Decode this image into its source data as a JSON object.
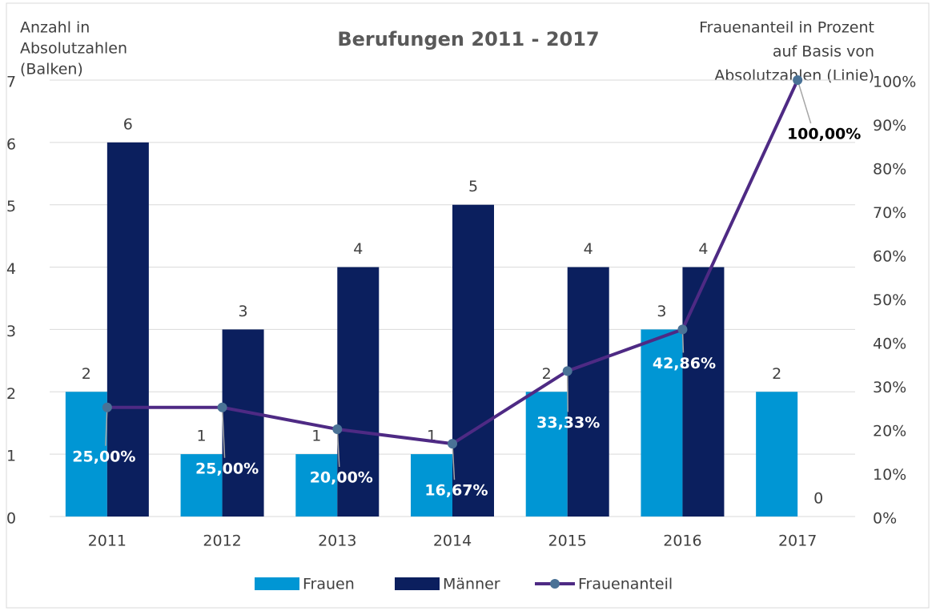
{
  "chart_data": {
    "type": "bar",
    "title": "Berufungen 2011 - 2017",
    "y_axis_title": [
      "Anzahl in",
      "Absolutzahlen",
      "(Balken)"
    ],
    "y2_axis_title": [
      "Frauenanteil in Prozent",
      "auf Basis von",
      "Absolutzahlen (Linie)"
    ],
    "categories": [
      "2011",
      "2012",
      "2013",
      "2014",
      "2015",
      "2016",
      "2017"
    ],
    "series": [
      {
        "name": "Frauen",
        "color": "#0096d4",
        "type": "bar",
        "values": [
          2,
          1,
          1,
          1,
          2,
          3,
          2
        ]
      },
      {
        "name": "Männer",
        "color": "#0b1f5e",
        "type": "bar",
        "values": [
          6,
          3,
          4,
          5,
          4,
          4,
          0
        ]
      },
      {
        "name": "Frauenanteil",
        "color": "#4e2a84",
        "marker_color": "#4a7296",
        "type": "line",
        "axis": "y2",
        "values": [
          25,
          25,
          20,
          16.67,
          33.33,
          42.86,
          100
        ],
        "value_labels": [
          "25,00%",
          "25,00%",
          "20,00%",
          "16,67%",
          "33,33%",
          "42,86%",
          "100,00%"
        ]
      }
    ],
    "ylim": [
      0,
      7
    ],
    "yticks": [
      0,
      1,
      2,
      3,
      4,
      5,
      6,
      7
    ],
    "y2lim": [
      0,
      100
    ],
    "y2ticks": [
      {
        "value": 0,
        "label": "0%"
      },
      {
        "value": 10,
        "label": "10%"
      },
      {
        "value": 20,
        "label": "20%"
      },
      {
        "value": 30,
        "label": "30%"
      },
      {
        "value": 40,
        "label": "40%"
      },
      {
        "value": 50,
        "label": "50%"
      },
      {
        "value": 60,
        "label": "60%"
      },
      {
        "value": 70,
        "label": "70%"
      },
      {
        "value": 80,
        "label": "80%"
      },
      {
        "value": 90,
        "label": "90%"
      },
      {
        "value": 100,
        "label": "100%"
      }
    ],
    "grid": true,
    "legend": "bottom"
  }
}
